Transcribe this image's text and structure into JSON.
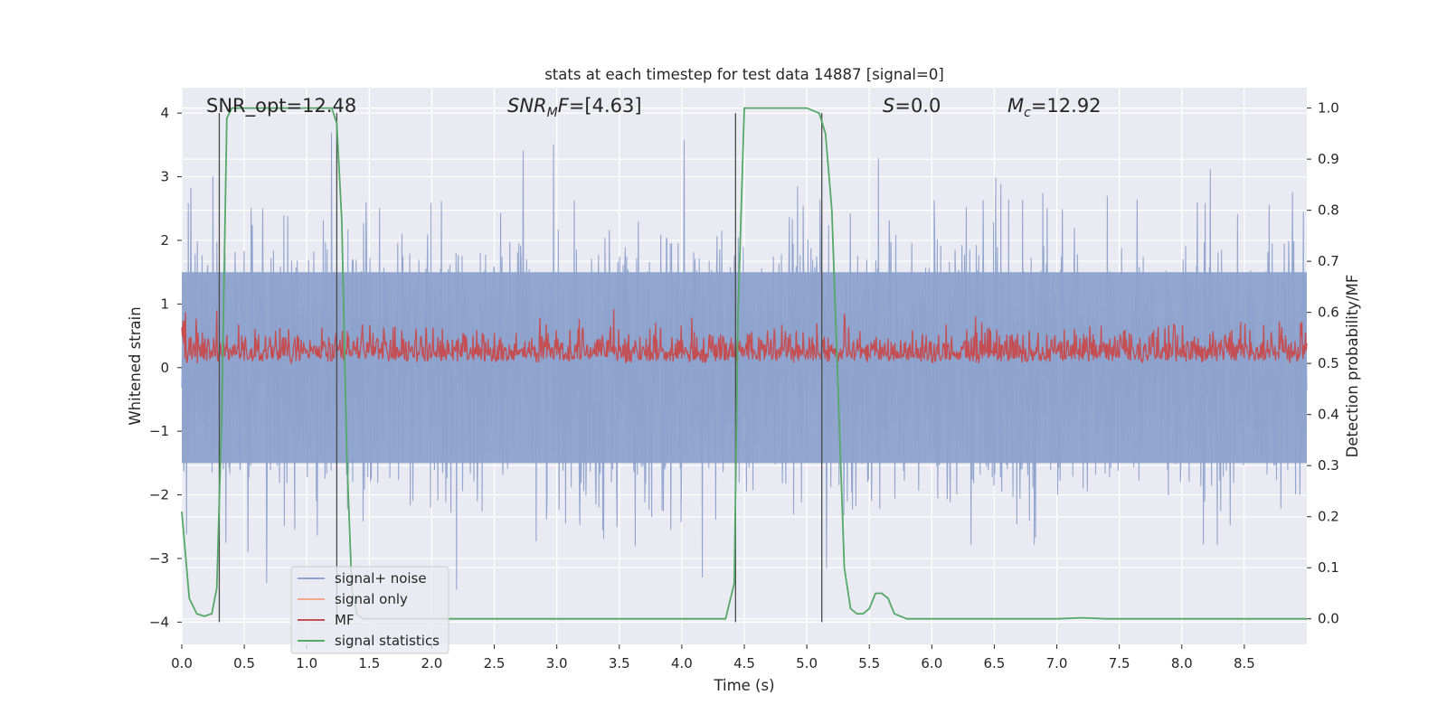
{
  "chart_data": {
    "type": "line",
    "title": "stats at each timestep for test data 14887 [signal=0]",
    "xlabel": "Time (s)",
    "ylabel": "Whitened strain",
    "y2label": "Detection probability/MF",
    "xlim": [
      0.0,
      9.0
    ],
    "ylim": [
      -4.35,
      4.4
    ],
    "y2lim": [
      -0.05,
      1.04
    ],
    "x_ticks": [
      0.0,
      0.5,
      1.0,
      1.5,
      2.0,
      2.5,
      3.0,
      3.5,
      4.0,
      4.5,
      5.0,
      5.5,
      6.0,
      6.5,
      7.0,
      7.5,
      8.0,
      8.5
    ],
    "x_tick_labels": [
      "0.0",
      "0.5",
      "1.0",
      "1.5",
      "2.0",
      "2.5",
      "3.0",
      "3.5",
      "4.0",
      "4.5",
      "5.0",
      "5.5",
      "6.0",
      "6.5",
      "7.0",
      "7.5",
      "8.0",
      "8.5"
    ],
    "y_ticks": [
      4,
      3,
      2,
      1,
      0,
      -1,
      -2,
      -3,
      -4
    ],
    "y_tick_labels": [
      "4",
      "3",
      "2",
      "1",
      "0",
      "−1",
      "−2",
      "−3",
      "−4"
    ],
    "y2_ticks": [
      1.0,
      0.9,
      0.8,
      0.7,
      0.6,
      0.5,
      0.4,
      0.3,
      0.2,
      0.1,
      0.0
    ],
    "y2_tick_labels": [
      "1.0",
      "0.9",
      "0.8",
      "0.7",
      "0.6",
      "0.5",
      "0.4",
      "0.3",
      "0.2",
      "0.1",
      "0.0"
    ],
    "legend": {
      "location": "lower-left",
      "entries": [
        {
          "label": "signal+ noise",
          "color": "#8da2cc"
        },
        {
          "label": "signal only",
          "color": "#f0a98c"
        },
        {
          "label": "MF",
          "color": "#c44e52"
        },
        {
          "label": "signal statistics",
          "color": "#55a868"
        }
      ]
    },
    "annotations": [
      {
        "text": "SNR_opt=12.48",
        "x": 0.2,
        "y": 4.1
      },
      {
        "text": "SNR_MF=[4.63]",
        "x": 2.6,
        "y": 4.1
      },
      {
        "text": "S=0.0",
        "x": 5.6,
        "y": 4.1
      },
      {
        "text": "M_c=12.92",
        "x": 6.6,
        "y": 4.1
      }
    ],
    "vertical_lines_x": [
      0.3,
      1.24,
      4.43,
      5.12
    ],
    "vertical_lines_range": [
      -4.0,
      4.0
    ],
    "series": [
      {
        "name": "signal+ noise",
        "axis": "left",
        "color": "#8da2cc",
        "style": "dense-noise",
        "amplitude_envelope": [
          -3.6,
          3.8
        ]
      },
      {
        "name": "signal only",
        "axis": "left",
        "color": "#f0a98c",
        "style": "hidden-behind"
      },
      {
        "name": "MF",
        "axis": "right",
        "color": "#c44e52",
        "style": "dense-noise",
        "base": 0.5,
        "range": [
          0.5,
          0.61
        ]
      },
      {
        "name": "signal statistics",
        "axis": "right",
        "color": "#55a868",
        "x": [
          0.0,
          0.06,
          0.12,
          0.18,
          0.24,
          0.28,
          0.32,
          0.36,
          0.4,
          0.5,
          0.8,
          1.2,
          1.24,
          1.28,
          1.32,
          1.36,
          1.4,
          1.45,
          1.6,
          2.5,
          3.5,
          4.35,
          4.42,
          4.45,
          4.5,
          4.6,
          5.0,
          5.1,
          5.15,
          5.2,
          5.25,
          5.3,
          5.35,
          5.4,
          5.45,
          5.5,
          5.55,
          5.6,
          5.65,
          5.7,
          5.75,
          5.8,
          6.0,
          7.0,
          7.2,
          7.4,
          8.0,
          9.0
        ],
        "y": [
          0.21,
          0.04,
          0.01,
          0.005,
          0.01,
          0.06,
          0.4,
          0.98,
          1.0,
          1.0,
          1.0,
          1.0,
          0.97,
          0.78,
          0.32,
          0.06,
          0.01,
          0.0,
          0.0,
          0.0,
          0.0,
          0.0,
          0.07,
          0.6,
          1.0,
          1.0,
          1.0,
          0.99,
          0.95,
          0.8,
          0.45,
          0.1,
          0.02,
          0.01,
          0.01,
          0.02,
          0.05,
          0.05,
          0.04,
          0.01,
          0.005,
          0.0,
          0.0,
          0.0,
          0.002,
          0.0,
          0.0,
          0.0
        ]
      }
    ]
  }
}
